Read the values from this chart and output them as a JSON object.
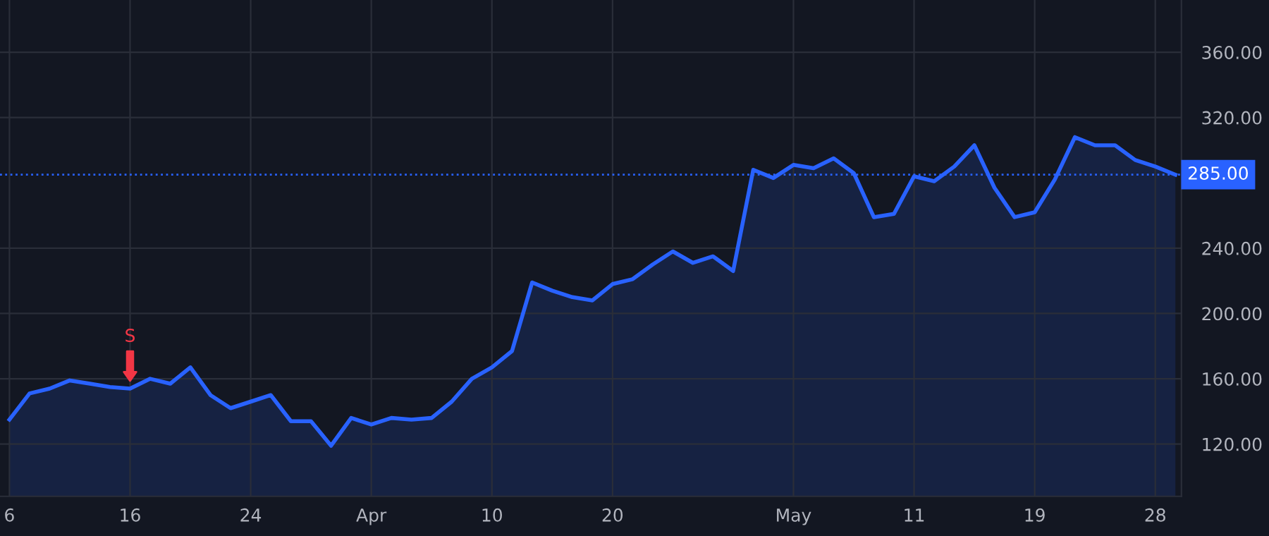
{
  "chart_data": {
    "type": "area",
    "categories": [
      "6",
      null,
      null,
      null,
      null,
      null,
      "16",
      null,
      null,
      null,
      null,
      null,
      "24",
      null,
      null,
      null,
      null,
      null,
      "Apr",
      null,
      null,
      null,
      null,
      null,
      "10",
      null,
      null,
      null,
      null,
      null,
      "20",
      null,
      null,
      null,
      null,
      null,
      null,
      null,
      null,
      "May",
      null,
      null,
      null,
      null,
      null,
      "11",
      null,
      null,
      null,
      null,
      null,
      "19",
      null,
      null,
      null,
      null,
      null,
      "28",
      null
    ],
    "series": [
      {
        "color": "#2962ff",
        "values": [
          135,
          151,
          154,
          159,
          157,
          155,
          154,
          160,
          157,
          167,
          150,
          142,
          146,
          150,
          134,
          134,
          119,
          136,
          132,
          136,
          135,
          136,
          146,
          160,
          167,
          177,
          219,
          214,
          210,
          208,
          218,
          221,
          230,
          238,
          231,
          235,
          226,
          288,
          283,
          291,
          289,
          295,
          286,
          259,
          261,
          284,
          281,
          290,
          303,
          277,
          259,
          262,
          282,
          308,
          303,
          303,
          294,
          290,
          285
        ]
      }
    ],
    "ylim": [
      88,
      392
    ],
    "yticks": [
      {
        "value": 120,
        "label": "120.00"
      },
      {
        "value": 160,
        "label": "160.00"
      },
      {
        "value": 200,
        "label": "200.00"
      },
      {
        "value": 240,
        "label": "240.00"
      },
      {
        "value": 320,
        "label": "320.00"
      },
      {
        "value": 360,
        "label": "360.00"
      }
    ],
    "grid": true,
    "ref_lines": [
      {
        "axis": "y",
        "value": 285,
        "label": "285.00",
        "color": "#2962ff",
        "line_style": "dotted"
      }
    ],
    "annotations": [
      {
        "text": "S",
        "x": "16",
        "y": 154
      }
    ]
  }
}
